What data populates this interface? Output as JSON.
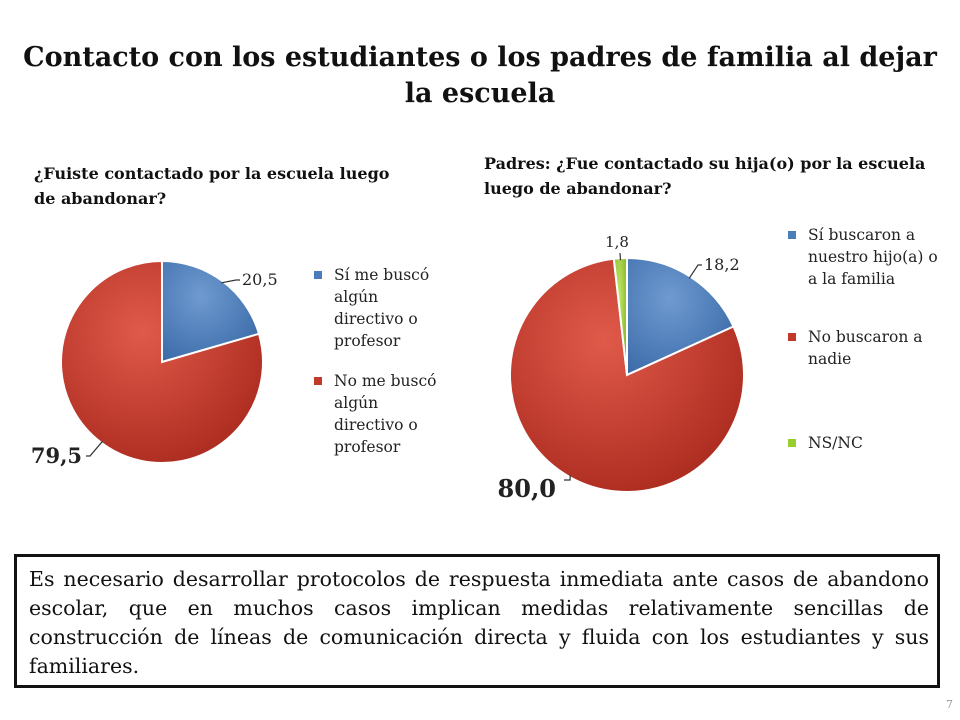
{
  "slide": {
    "title": "Contacto con los estudiantes o los padres de familia al dejar la escuela",
    "page_number": "7",
    "note": "Es necesario desarrollar protocolos de respuesta inmediata ante casos de abandono escolar, que en muchos casos implican medidas relativamente sencillas de construcción de líneas de comunicación directa y fluida con los estudiantes y sus familiares."
  },
  "colors": {
    "blue": "#4a7ebb",
    "red": "#c0392b",
    "green": "#9acd32"
  },
  "chart_data": [
    {
      "type": "pie",
      "title": "¿Fuiste contactado por la escuela luego de abandonar?",
      "categories": [
        "Sí me buscó algún directivo o profesor",
        "No me buscó algún directivo o profesor"
      ],
      "values": [
        20.5,
        79.5
      ],
      "value_labels": [
        "20,5",
        "79,5"
      ],
      "colors": [
        "#4a7ebb",
        "#c0392b"
      ],
      "legend_position": "right"
    },
    {
      "type": "pie",
      "title": "Padres: ¿Fue contactado su hija(o) por la escuela luego de abandonar?",
      "categories": [
        "Sí buscaron a nuestro hijo(a) o a la familia",
        "No buscaron a nadie",
        "NS/NC"
      ],
      "values": [
        18.2,
        80.0,
        1.8
      ],
      "value_labels": [
        "18,2",
        "80,0",
        "1,8"
      ],
      "colors": [
        "#4a7ebb",
        "#c0392b",
        "#9acd32"
      ],
      "legend_position": "right"
    }
  ]
}
